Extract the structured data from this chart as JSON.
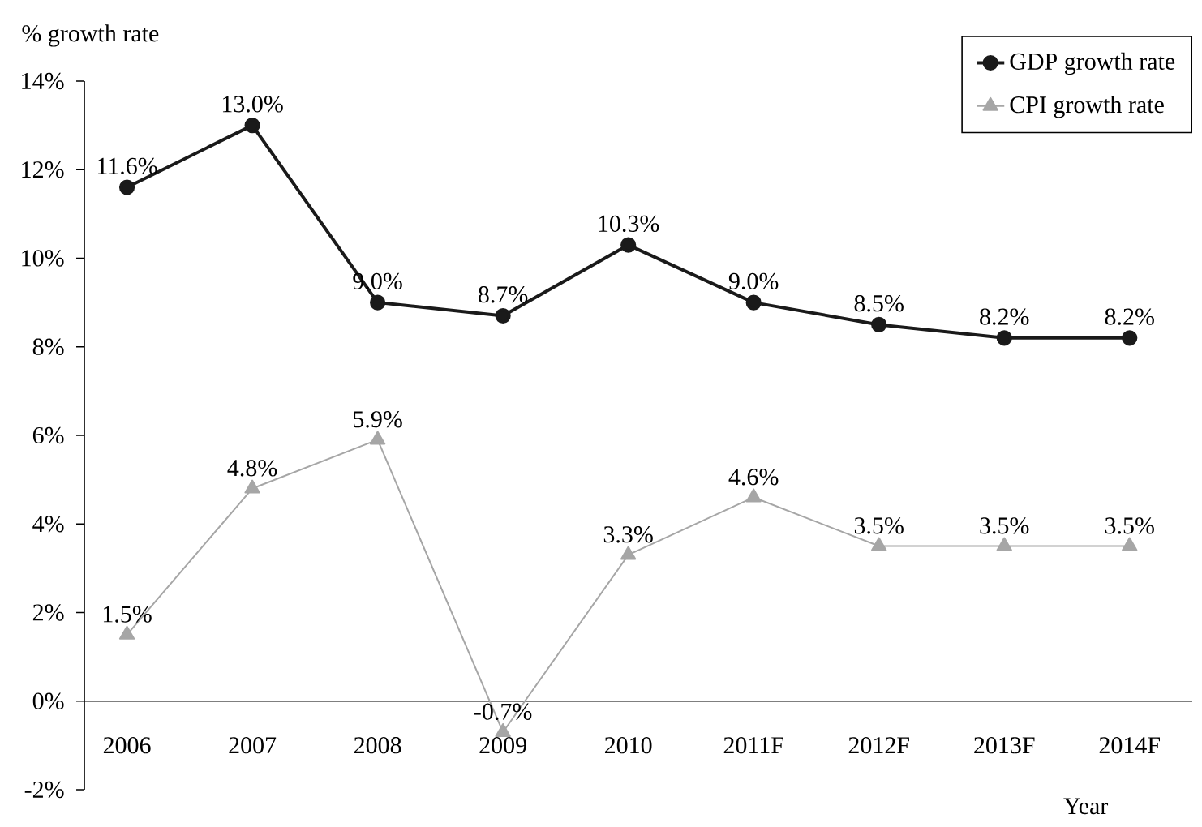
{
  "chart_data": {
    "type": "line",
    "xlabel": "Year",
    "ylabel": "% growth rate",
    "categories": [
      "2006",
      "2007",
      "2008",
      "2009",
      "2010",
      "2011F",
      "2012F",
      "2013F",
      "2014F"
    ],
    "series": [
      {
        "name": "GDP growth rate",
        "color": "#1a1a1a",
        "marker": "circle",
        "values": [
          11.6,
          13.0,
          9.0,
          8.7,
          10.3,
          9.0,
          8.5,
          8.2,
          8.2
        ],
        "value_labels": [
          "11.6%",
          "13.0%",
          "9.0%",
          "8.7%",
          "10.3%",
          "9.0%",
          "8.5%",
          "8.2%",
          "8.2%"
        ]
      },
      {
        "name": "CPI growth rate",
        "color": "#a6a6a6",
        "marker": "triangle",
        "values": [
          1.5,
          4.8,
          5.9,
          -0.7,
          3.3,
          4.6,
          3.5,
          3.5,
          3.5
        ],
        "value_labels": [
          "1.5%",
          "4.8%",
          "5.9%",
          "-0.7%",
          "3.3%",
          "4.6%",
          "3.5%",
          "3.5%",
          "3.5%"
        ]
      }
    ],
    "ylim": [
      -2,
      14
    ],
    "yticks": [
      {
        "value": -2,
        "label": "-2%"
      },
      {
        "value": 0,
        "label": "0%"
      },
      {
        "value": 2,
        "label": "2%"
      },
      {
        "value": 4,
        "label": "4%"
      },
      {
        "value": 6,
        "label": "6%"
      },
      {
        "value": 8,
        "label": "8%"
      },
      {
        "value": 10,
        "label": "10%"
      },
      {
        "value": 12,
        "label": "12%"
      },
      {
        "value": 14,
        "label": "14%"
      }
    ],
    "grid": false,
    "legend": "top right",
    "line_style": "solid"
  }
}
